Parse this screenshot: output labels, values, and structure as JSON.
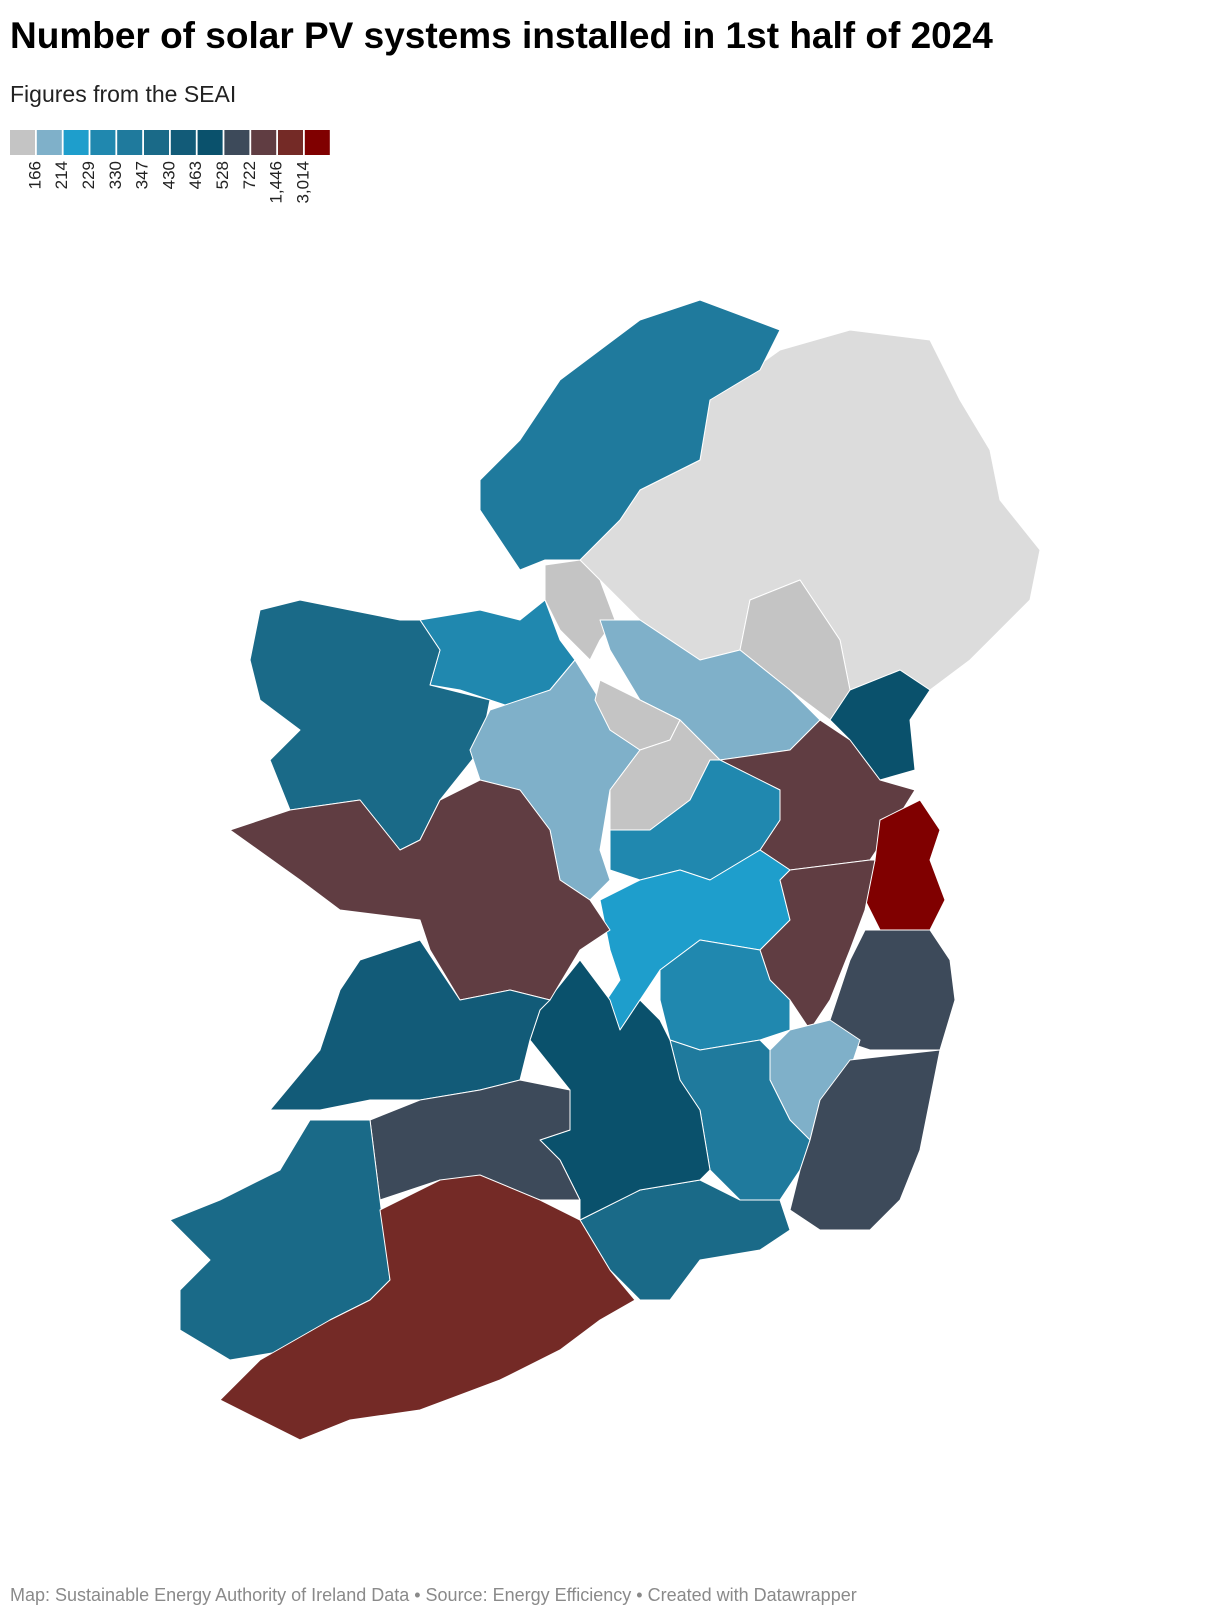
{
  "header": {
    "title": "Number of solar PV systems installed in 1st half of 2024",
    "subtitle": "Figures from the SEAI"
  },
  "legend": {
    "colors": [
      "#c4c4c4",
      "#7fb0c9",
      "#1e9ecc",
      "#2088af",
      "#1f7a9d",
      "#1a6a88",
      "#125b78",
      "#0a516c",
      "#3d4a5a",
      "#603d42",
      "#742a26",
      "#800000"
    ],
    "ticks": [
      166,
      214,
      229,
      330,
      347,
      430,
      463,
      528,
      722,
      {
        "value": 1446,
        "label": "1,446"
      },
      {
        "value": 3014,
        "label": "3,014"
      }
    ]
  },
  "footer": {
    "text": "Map: Sustainable Energy Authority of Ireland Data • Source: Energy Efficiency • Created with Datawrapper"
  }
}
